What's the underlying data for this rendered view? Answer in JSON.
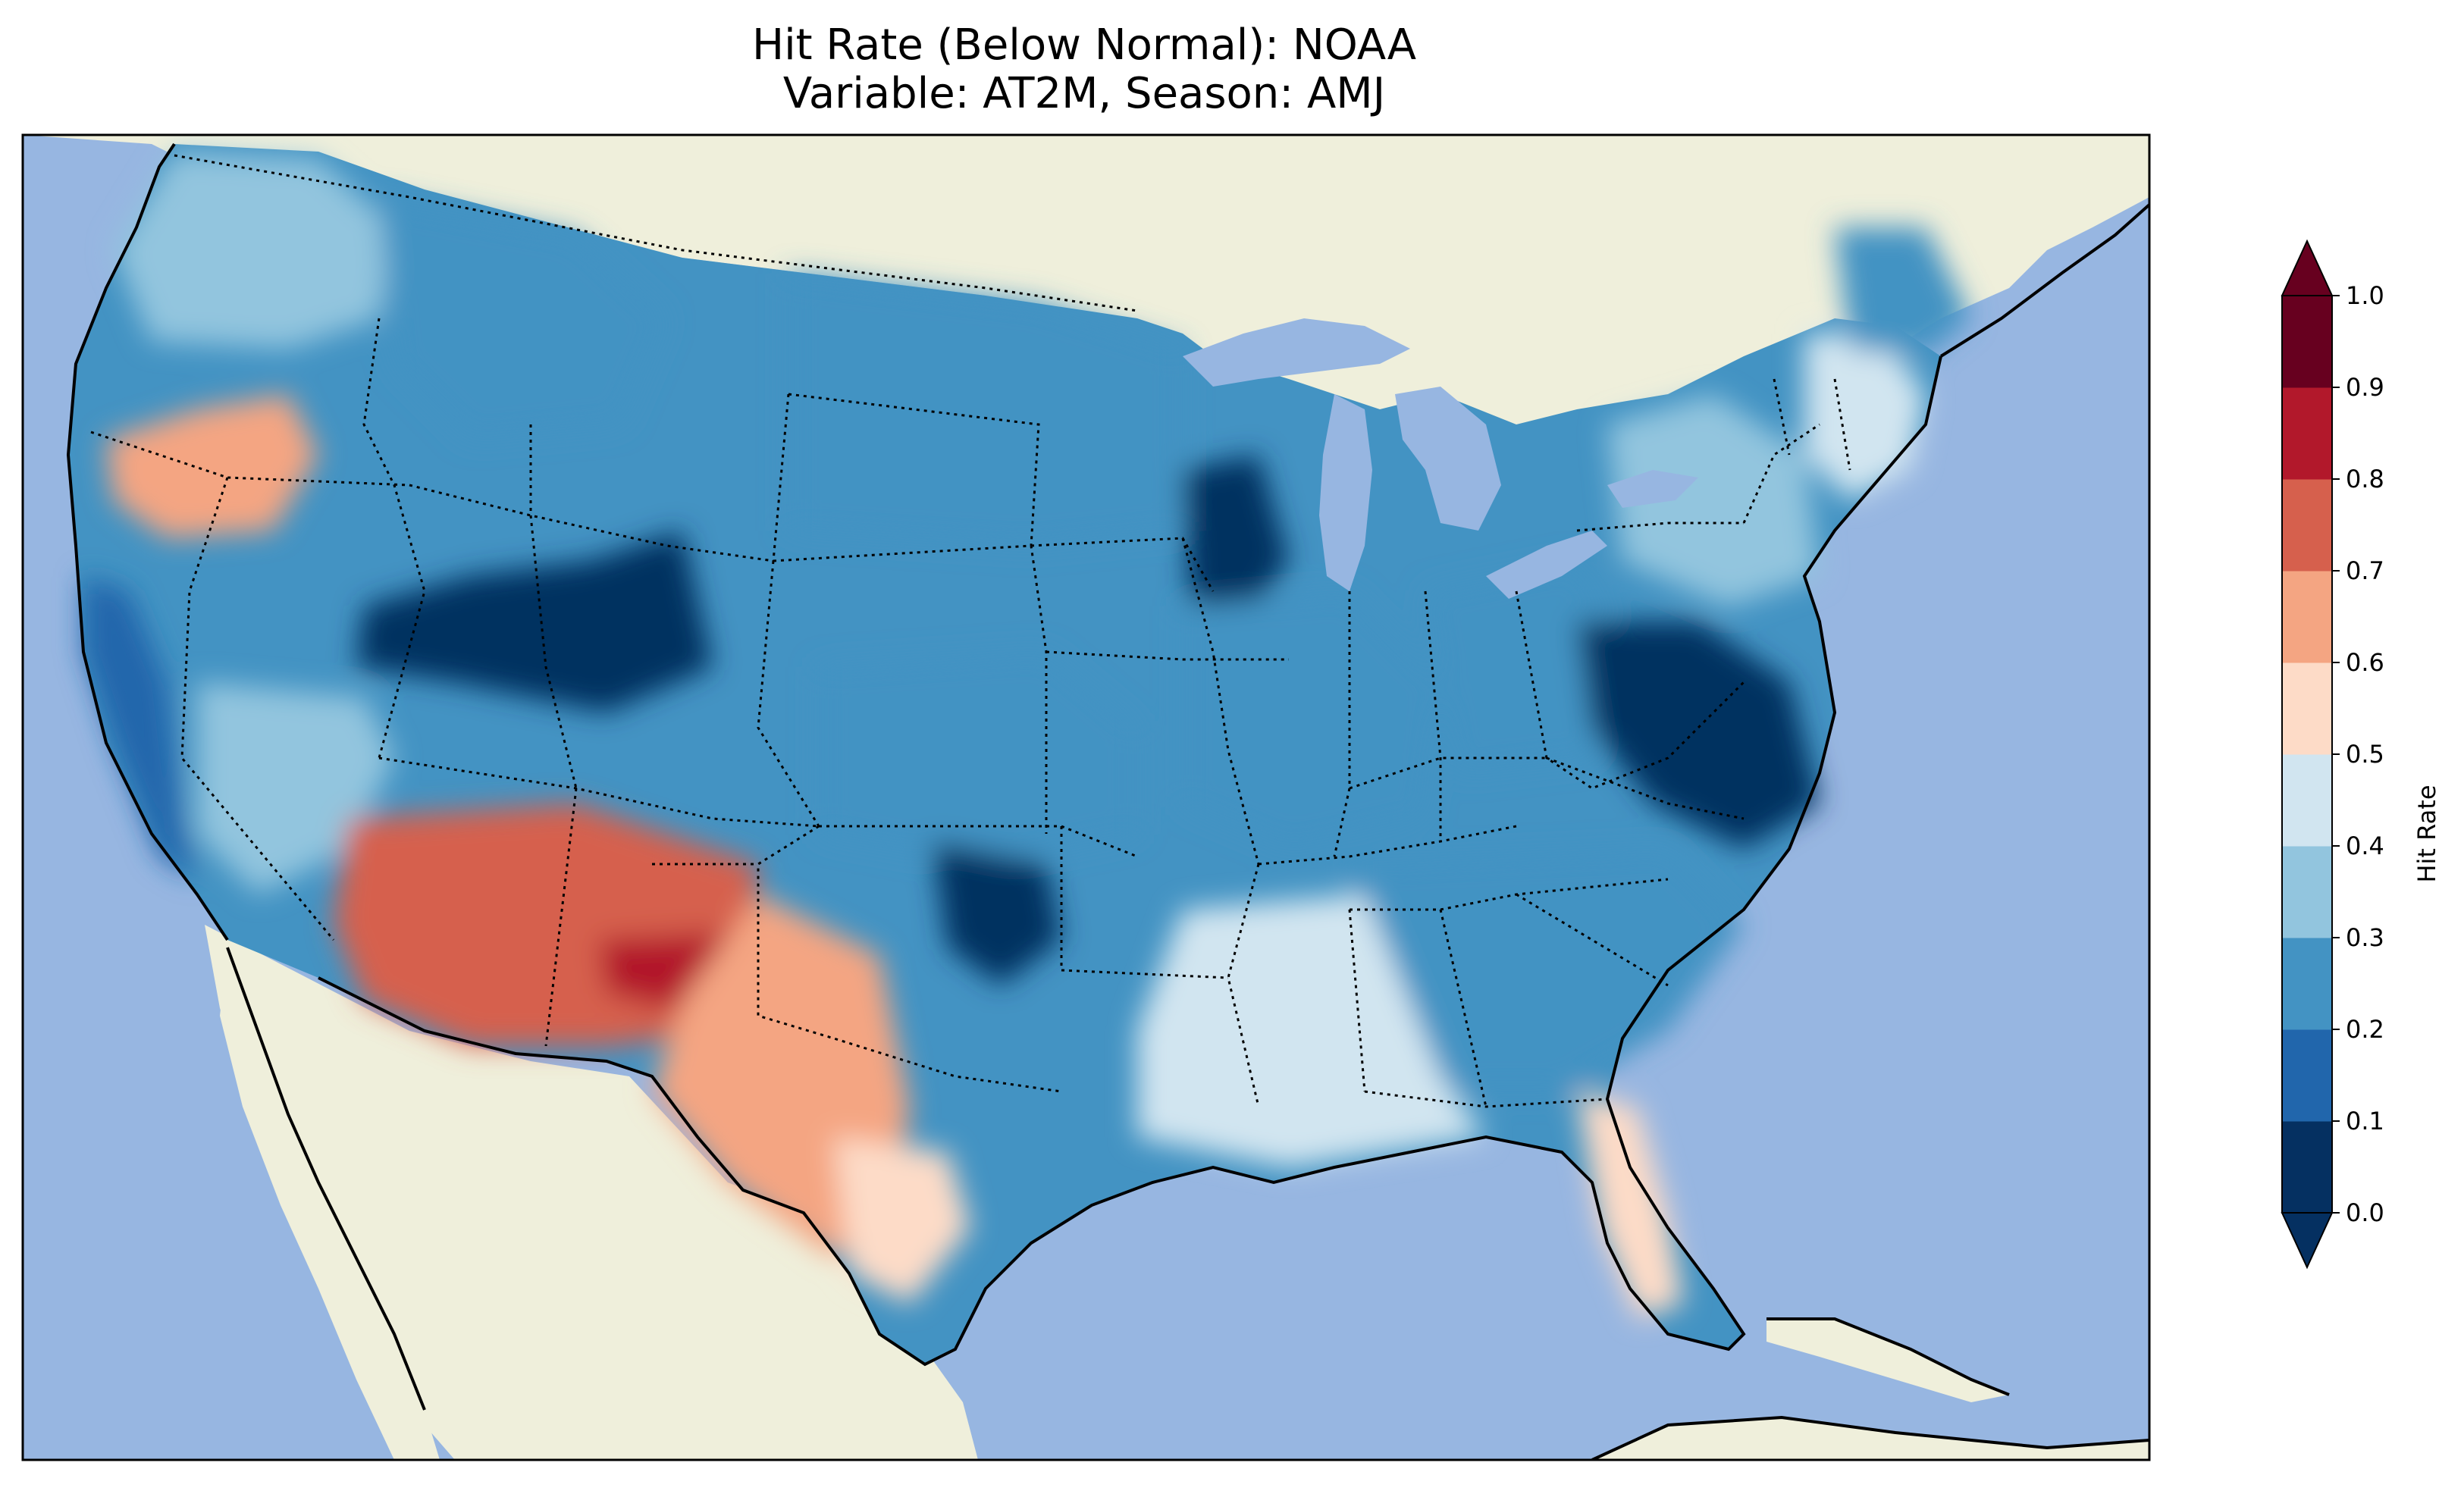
{
  "title": {
    "line1": "Hit Rate (Below Normal): NOAA",
    "line2": "Variable: AT2M, Season: AMJ"
  },
  "map": {
    "description_colors": {
      "ocean": "#97b6e1",
      "land": "#efefdb",
      "border": "#000000"
    },
    "regions": [
      {
        "name": "pacific-northwest",
        "value": 0.35
      },
      {
        "name": "northern-california-oregon",
        "value": 0.65
      },
      {
        "name": "northern-rockies",
        "value": 0.25
      },
      {
        "name": "northern-plains",
        "value": 0.25
      },
      {
        "name": "central-rockies",
        "value": 0.05
      },
      {
        "name": "california-coast",
        "value": 0.15
      },
      {
        "name": "great-basin",
        "value": 0.35
      },
      {
        "name": "southwest",
        "value": 0.75
      },
      {
        "name": "new-mexico-core",
        "value": 0.85
      },
      {
        "name": "west-texas",
        "value": 0.65
      },
      {
        "name": "south-texas",
        "value": 0.55
      },
      {
        "name": "central-plains",
        "value": 0.25
      },
      {
        "name": "oklahoma",
        "value": 0.05
      },
      {
        "name": "upper-midwest",
        "value": 0.05
      },
      {
        "name": "midwest",
        "value": 0.25
      },
      {
        "name": "ohio-valley",
        "value": 0.25
      },
      {
        "name": "mid-atlantic",
        "value": 0.05
      },
      {
        "name": "southeast",
        "value": 0.25
      },
      {
        "name": "gulf-coast",
        "value": 0.45
      },
      {
        "name": "florida",
        "value": 0.55
      },
      {
        "name": "northeast",
        "value": 0.35
      },
      {
        "name": "new-england",
        "value": 0.45
      },
      {
        "name": "maine",
        "value": 0.25
      }
    ]
  },
  "colorbar": {
    "label": "Hit Rate",
    "ticks": [
      "0.0",
      "0.1",
      "0.2",
      "0.3",
      "0.4",
      "0.5",
      "0.6",
      "0.7",
      "0.8",
      "0.9",
      "1.0"
    ],
    "colors": [
      "#053061",
      "#2166ac",
      "#4393c3",
      "#92c5de",
      "#d1e5f0",
      "#fddbc7",
      "#f4a582",
      "#d6604d",
      "#b2182b",
      "#67001f"
    ],
    "under_color": "#053061",
    "over_color": "#67001f"
  }
}
